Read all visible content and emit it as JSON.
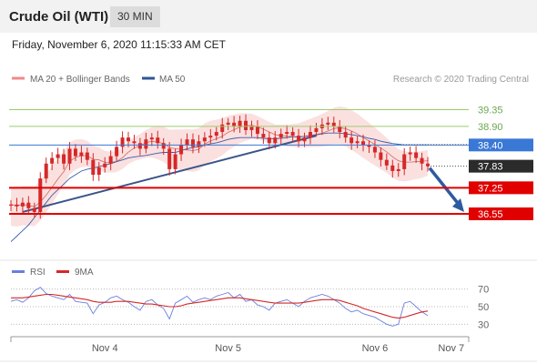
{
  "header": {
    "title": "Crude Oil (WTI)",
    "timeframe": "30 MIN",
    "date_line": "Friday, November 6, 2020 11:15:33 AM CET"
  },
  "colors": {
    "candle": "#d62828",
    "ma20": "#c0392b",
    "bollinger": "#f7c6c6",
    "ma50": "#3a5ea8",
    "trendline": "#3a5488",
    "resistance": "#9ccc6a",
    "support": "#e00000",
    "pivot": "#3a78d6",
    "rsi": "#6a7fdc",
    "rsi_ma": "#d62828",
    "arrow": "#2e5aa0"
  },
  "chart_data": [
    {
      "type": "line",
      "title": "Crude Oil (WTI)",
      "timeframe": "30 MIN",
      "legend": [
        {
          "name": "MA 20 + Bollinger Bands",
          "color": "#f08a8a"
        },
        {
          "name": "MA 50",
          "color": "#2c5696"
        }
      ],
      "legend_position": "top-left",
      "credit": "Research © 2020 Trading Central",
      "x_ticks": [
        {
          "label": "Nov 4",
          "index": 16
        },
        {
          "label": "Nov 5",
          "index": 37
        },
        {
          "label": "Nov 6",
          "index": 62
        },
        {
          "label": "Nov 7",
          "index": 75
        }
      ],
      "ylim": [
        35.4,
        39.9
      ],
      "price": [
        36.8,
        36.75,
        36.85,
        36.7,
        36.6,
        37.5,
        37.9,
        38.05,
        38.15,
        37.9,
        38.3,
        38.1,
        38.2,
        38.0,
        37.6,
        37.8,
        37.9,
        38.1,
        38.35,
        38.6,
        38.5,
        38.45,
        38.3,
        38.55,
        38.6,
        38.45,
        38.3,
        37.75,
        38.15,
        38.4,
        38.55,
        38.35,
        38.5,
        38.6,
        38.65,
        38.75,
        38.95,
        39.0,
        38.9,
        39.05,
        38.8,
        38.9,
        38.7,
        38.6,
        38.45,
        38.6,
        38.7,
        38.75,
        38.65,
        38.5,
        38.6,
        38.75,
        38.85,
        38.95,
        39.0,
        38.9,
        38.75,
        38.6,
        38.45,
        38.5,
        38.4,
        38.35,
        38.2,
        38.0,
        37.85,
        37.7,
        37.75,
        38.15,
        38.2,
        38.05,
        37.9,
        37.83
      ],
      "ma50": [
        35.8,
        35.95,
        36.1,
        36.25,
        36.45,
        36.65,
        36.85,
        37.05,
        37.2,
        37.35,
        37.5,
        37.6,
        37.7,
        37.75,
        37.78,
        37.82,
        37.86,
        37.9,
        37.95,
        38.0,
        38.05,
        38.08,
        38.1,
        38.12,
        38.15,
        38.18,
        38.2,
        38.2,
        38.2,
        38.25,
        38.3,
        38.33,
        38.36,
        38.4,
        38.43,
        38.46,
        38.5,
        38.55,
        38.58,
        38.6,
        38.6,
        38.6,
        38.6,
        38.58,
        38.57,
        38.57,
        38.58,
        38.6,
        38.62,
        38.62,
        38.63,
        38.65,
        38.67,
        38.7,
        38.72,
        38.72,
        38.72,
        38.7,
        38.68,
        38.65,
        38.62,
        38.58,
        38.55,
        38.5,
        38.47,
        38.44,
        38.42,
        38.4,
        38.4,
        38.4,
        38.4,
        38.4
      ],
      "support_resistance": [
        {
          "label": "39.35",
          "value": 39.35,
          "kind": "resistance"
        },
        {
          "label": "38.90",
          "value": 38.9,
          "kind": "resistance"
        },
        {
          "label": "38.40",
          "value": 38.4,
          "kind": "pivot"
        },
        {
          "label": "37.83",
          "value": 37.83,
          "kind": "last"
        },
        {
          "label": "37.25",
          "value": 37.25,
          "kind": "support"
        },
        {
          "label": "36.55",
          "value": 36.55,
          "kind": "support"
        }
      ],
      "trendline": [
        {
          "index": 2,
          "value": 36.6
        },
        {
          "index": 52,
          "value": 38.65
        }
      ],
      "forecast_arrow": {
        "from": 37.83,
        "to": 36.55
      }
    },
    {
      "type": "line",
      "legend": [
        {
          "name": "RSI",
          "color": "#6a7fdc"
        },
        {
          "name": "9MA",
          "color": "#d62828"
        }
      ],
      "ylim": [
        20,
        80
      ],
      "y_ticks": [
        {
          "label": "70",
          "value": 70
        },
        {
          "label": "50",
          "value": 50
        },
        {
          "label": "30",
          "value": 30
        }
      ],
      "series": [
        {
          "name": "RSI",
          "values": [
            56,
            58,
            55,
            60,
            68,
            72,
            65,
            62,
            60,
            58,
            64,
            56,
            55,
            54,
            42,
            52,
            55,
            60,
            62,
            58,
            55,
            50,
            46,
            56,
            58,
            52,
            48,
            36,
            54,
            58,
            62,
            55,
            58,
            60,
            58,
            62,
            64,
            66,
            60,
            64,
            56,
            58,
            52,
            50,
            46,
            54,
            56,
            58,
            54,
            50,
            56,
            60,
            62,
            64,
            62,
            58,
            54,
            48,
            44,
            46,
            42,
            40,
            38,
            34,
            30,
            28,
            30,
            54,
            56,
            50,
            44,
            40
          ]
        },
        {
          "name": "9MA",
          "values": [
            60,
            60,
            60,
            61,
            62,
            63,
            64,
            64,
            63,
            62,
            61,
            60,
            59,
            58,
            56,
            55,
            55,
            55,
            56,
            56,
            56,
            55,
            54,
            53,
            53,
            52,
            51,
            50,
            50,
            51,
            53,
            54,
            55,
            56,
            57,
            58,
            59,
            60,
            60,
            60,
            59,
            58,
            57,
            56,
            55,
            54,
            54,
            54,
            54,
            54,
            55,
            56,
            57,
            58,
            58,
            58,
            57,
            55,
            53,
            51,
            48,
            46,
            44,
            42,
            40,
            38,
            37,
            38,
            40,
            42,
            44,
            45
          ]
        }
      ]
    }
  ]
}
